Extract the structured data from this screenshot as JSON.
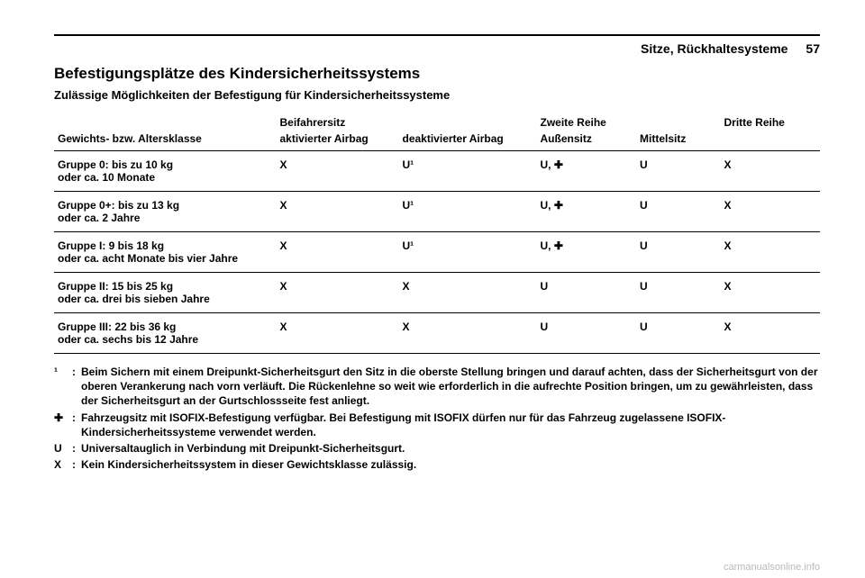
{
  "header": {
    "section": "Sitze, Rückhaltesysteme",
    "page": "57"
  },
  "title": "Befestigungsplätze des Kindersicherheitssystems",
  "subtitle": "Zulässige Möglichkeiten der Befestigung für Kindersicherheitssysteme",
  "columns": {
    "weight": "Gewichts- bzw. Altersklasse",
    "front": "Beifahrersitz",
    "front_active": "aktivierter Airbag",
    "front_deact": "deaktivierter Airbag",
    "row2": "Zweite Reihe",
    "row2_outer": "Außensitz",
    "row2_mid": "Mittelsitz",
    "row3": "Dritte Reihe"
  },
  "rows": [
    {
      "label": "Gruppe 0: bis zu 10 kg",
      "sub": "oder ca. 10 Monate",
      "c1": "X",
      "c2": "U¹",
      "c3": "U, ✚",
      "c4": "U",
      "c5": "X"
    },
    {
      "label": "Gruppe 0+: bis zu 13 kg",
      "sub": "oder ca. 2 Jahre",
      "c1": "X",
      "c2": "U¹",
      "c3": "U, ✚",
      "c4": "U",
      "c5": "X"
    },
    {
      "label": "Gruppe I: 9 bis 18 kg",
      "sub": "oder ca. acht Monate bis vier Jahre",
      "c1": "X",
      "c2": "U¹",
      "c3": "U, ✚",
      "c4": "U",
      "c5": "X"
    },
    {
      "label": "Gruppe II: 15 bis 25 kg",
      "sub": "oder ca. drei bis sieben Jahre",
      "c1": "X",
      "c2": "X",
      "c3": "U",
      "c4": "U",
      "c5": "X"
    },
    {
      "label": "Gruppe III: 22 bis 36 kg",
      "sub": "oder ca. sechs bis 12 Jahre",
      "c1": "X",
      "c2": "X",
      "c3": "U",
      "c4": "U",
      "c5": "X"
    }
  ],
  "footnotes": [
    {
      "key": "¹",
      "text": "Beim Sichern mit einem Dreipunkt-Sicherheitsgurt den Sitz in die oberste Stellung bringen und darauf achten, dass der Sicherheitsgurt von der oberen Verankerung nach vorn verläuft. Die Rückenlehne so weit wie erforderlich in die aufrechte Position bringen, um zu gewährleisten, dass der Sicherheitsgurt an der Gurtschlossseite fest anliegt."
    },
    {
      "key": "✚",
      "text": "Fahrzeugsitz mit ISOFIX-Befestigung verfügbar. Bei Befestigung mit ISOFIX dürfen nur für das Fahrzeug zugelassene ISOFIX-Kindersicherheitssysteme verwendet werden."
    },
    {
      "key": "U",
      "text": "Universaltauglich in Verbindung mit Dreipunkt-Sicherheitsgurt."
    },
    {
      "key": "X",
      "text": "Kein Kindersicherheitssystem in dieser Gewichtsklasse zulässig."
    }
  ],
  "watermark": "carmanualsonline.info"
}
